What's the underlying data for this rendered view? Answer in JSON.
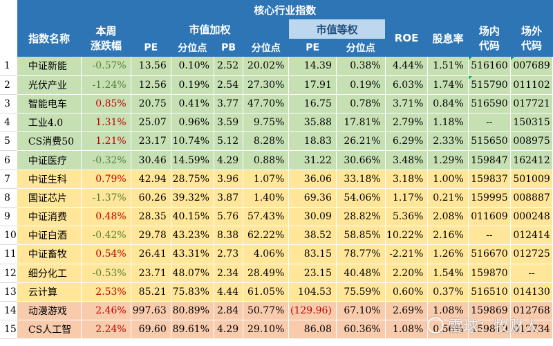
{
  "title": "核心行业指数",
  "headers": {
    "name": "指数名称",
    "weekly_change": [
      "本周",
      "涨跌幅"
    ],
    "cap_weighted": "市值加权",
    "equal_weighted": "市值等权",
    "pe": "PE",
    "percentile": "分位点",
    "pb": "PB",
    "roe": "ROE",
    "dividend": "股息率",
    "onmarket": [
      "场内",
      "代码"
    ],
    "offmarket": [
      "场外",
      "代码"
    ]
  },
  "colors": {
    "header_blue": "#2e75b6",
    "header_light_blue": "#bdd7ee",
    "row_green": "#c6e0b4",
    "row_yellow": "#ffe699",
    "row_pink": "#f8cbad",
    "negative_change": "#548235",
    "positive_change": "#c00000"
  },
  "rows": [
    {
      "n": "1",
      "name": "中证新能",
      "chg": "-0.57%",
      "dir": "down",
      "pe": "13.56",
      "pe_pct": "0.10%",
      "pb": "2.52",
      "pb_pct": "20.02%",
      "epe": "14.39",
      "epe_pct": "0.38%",
      "roe": "4.44%",
      "div": "1.51%",
      "on": "516160",
      "off": "007689",
      "band": "green"
    },
    {
      "n": "2",
      "name": "光伏产业",
      "chg": "-1.24%",
      "dir": "down",
      "pe": "12.56",
      "pe_pct": "0.19%",
      "pb": "2.54",
      "pb_pct": "27.30%",
      "epe": "17.91",
      "epe_pct": "0.19%",
      "roe": "6.03%",
      "div": "1.74%",
      "on": "515790",
      "off": "011102",
      "band": "green"
    },
    {
      "n": "3",
      "name": "智能电车",
      "chg": "0.85%",
      "dir": "up",
      "pe": "20.75",
      "pe_pct": "0.41%",
      "pb": "3.77",
      "pb_pct": "47.70%",
      "epe": "16.75",
      "epe_pct": "0.78%",
      "roe": "3.71%",
      "div": "0.84%",
      "on": "516590",
      "off": "017721",
      "band": "green"
    },
    {
      "n": "4",
      "name": "工业4.0",
      "chg": "1.31%",
      "dir": "up",
      "pe": "25.07",
      "pe_pct": "0.96%",
      "pb": "3.59",
      "pb_pct": "9.75%",
      "epe": "35.88",
      "epe_pct": "17.81%",
      "roe": "2.79%",
      "div": "1.18%",
      "on": "--",
      "off": "150315",
      "band": "green"
    },
    {
      "n": "5",
      "name": "CS消费50",
      "chg": "1.21%",
      "dir": "up",
      "pe": "23.17",
      "pe_pct": "10.74%",
      "pb": "5.12",
      "pb_pct": "8.28%",
      "epe": "18.83",
      "epe_pct": "26.21%",
      "roe": "6.29%",
      "div": "2.33%",
      "on": "515650",
      "off": "008975",
      "band": "green"
    },
    {
      "n": "6",
      "name": "中证医疗",
      "chg": "-0.32%",
      "dir": "down",
      "pe": "30.46",
      "pe_pct": "14.59%",
      "pb": "4.29",
      "pb_pct": "0.88%",
      "epe": "31.22",
      "epe_pct": "30.66%",
      "roe": "3.48%",
      "div": "1.29%",
      "on": "159847",
      "off": "162412",
      "band": "green"
    },
    {
      "n": "7",
      "name": "中证生科",
      "chg": "0.79%",
      "dir": "up",
      "pe": "42.94",
      "pe_pct": "28.75%",
      "pb": "3.96",
      "pb_pct": "1.07%",
      "epe": "36.06",
      "epe_pct": "33.18%",
      "roe": "3.18%",
      "div": "1.00%",
      "on": "159837",
      "off": "501009",
      "band": "yellow"
    },
    {
      "n": "8",
      "name": "国证芯片",
      "chg": "-1.37%",
      "dir": "down",
      "pe": "60.26",
      "pe_pct": "39.32%",
      "pb": "3.87",
      "pb_pct": "1.40%",
      "epe": "69.36",
      "epe_pct": "54.06%",
      "roe": "1.17%",
      "div": "0.21%",
      "on": "159995",
      "off": "008887",
      "band": "yellow"
    },
    {
      "n": "9",
      "name": "中证消费",
      "chg": "0.48%",
      "dir": "up",
      "pe": "28.35",
      "pe_pct": "40.15%",
      "pb": "5.76",
      "pb_pct": "57.43%",
      "epe": "30.09",
      "epe_pct": "28.82%",
      "roe": "5.36%",
      "div": "2.08%",
      "on": "011609",
      "off": "000248",
      "band": "yellow"
    },
    {
      "n": "10",
      "name": "中证白酒",
      "chg": "-0.42%",
      "dir": "down",
      "pe": "29.78",
      "pe_pct": "43.23%",
      "pb": "8.38",
      "pb_pct": "62.22%",
      "epe": "38.52",
      "epe_pct": "58.85%",
      "roe": "10.22%",
      "div": "2.16%",
      "on": "--",
      "off": "012414",
      "band": "yellow"
    },
    {
      "n": "11",
      "name": "中证畜牧",
      "chg": "0.54%",
      "dir": "up",
      "pe": "26.41",
      "pe_pct": "43.31%",
      "pb": "2.73",
      "pb_pct": "4.06%",
      "epe": "83.15",
      "epe_pct": "78.77%",
      "roe": "-2.21%",
      "div": "1.26%",
      "on": "516670",
      "off": "012725",
      "band": "yellow"
    },
    {
      "n": "12",
      "name": "细分化工",
      "chg": "-0.53%",
      "dir": "down",
      "pe": "23.71",
      "pe_pct": "48.07%",
      "pb": "2.34",
      "pb_pct": "28.49%",
      "epe": "23.15",
      "epe_pct": "40.48%",
      "roe": "2.20%",
      "div": "1.54%",
      "on": "159870",
      "off": "--",
      "band": "yellow"
    },
    {
      "n": "13",
      "name": "云计算",
      "chg": "2.53%",
      "dir": "up",
      "pe": "85.21",
      "pe_pct": "75.83%",
      "pb": "4.44",
      "pb_pct": "61.05%",
      "epe": "104.53",
      "epe_pct": "75.59%",
      "roe": "0.60%",
      "div": "0.37%",
      "on": "516510",
      "off": "014130",
      "band": "yellow"
    },
    {
      "n": "14",
      "name": "动漫游戏",
      "chg": "2.46%",
      "dir": "up",
      "pe": "997.63",
      "pe_pct": "80.89%",
      "pb": "2.84",
      "pb_pct": "50.77%",
      "epe": "(129.96)",
      "epe_pct": "67.10%",
      "epe_neg": true,
      "roe": "2.69%",
      "div": "1.08%",
      "on": "159869",
      "off": "012768",
      "band": "pink"
    },
    {
      "n": "15",
      "name": "CS人工智",
      "chg": "2.24%",
      "dir": "up",
      "pe": "69.60",
      "pe_pct": "89.61%",
      "pb": "4.29",
      "pb_pct": "29.10%",
      "epe": "86.08",
      "epe_pct": "60.36%",
      "roe": "1.08%",
      "div": "0.56%",
      "on": "159819",
      "off": "012734",
      "band": "pink"
    }
  ],
  "watermark": "雪球：牧财人"
}
